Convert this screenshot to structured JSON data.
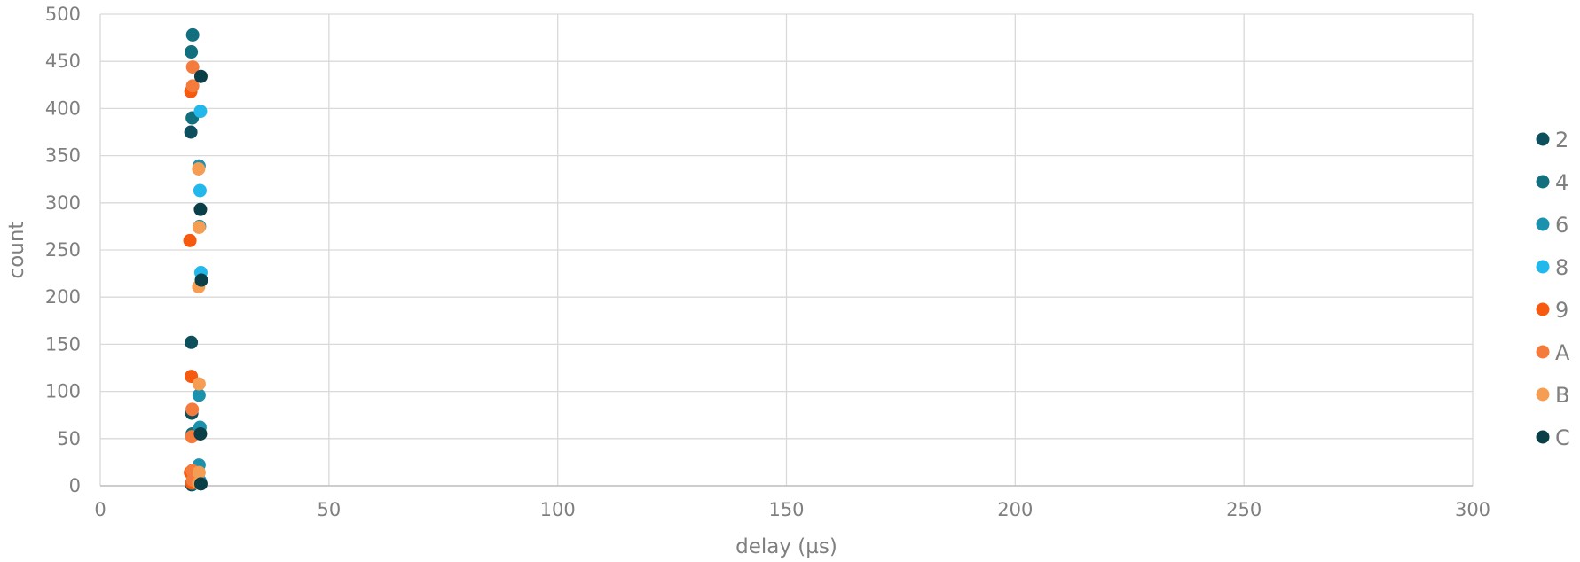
{
  "chart_data": {
    "type": "scatter",
    "xlabel": "delay (µs)",
    "ylabel": "count",
    "xlim": [
      0,
      300
    ],
    "ylim": [
      0,
      500
    ],
    "x_ticks": [
      0,
      50,
      100,
      150,
      200,
      250,
      300
    ],
    "y_ticks": [
      0,
      50,
      100,
      150,
      200,
      250,
      300,
      350,
      400,
      450,
      500
    ],
    "grid": true,
    "legend_position": "right",
    "series": [
      {
        "name": "2",
        "color": "#0d4f5c",
        "points": [
          [
            19.8,
            375
          ],
          [
            19.9,
            152
          ],
          [
            20.0,
            77
          ],
          [
            20.2,
            5
          ],
          [
            20.0,
            1
          ]
        ]
      },
      {
        "name": "4",
        "color": "#12707e",
        "points": [
          [
            20.2,
            478
          ],
          [
            19.9,
            460
          ],
          [
            20.1,
            390
          ],
          [
            20.1,
            55
          ],
          [
            20.3,
            10
          ],
          [
            20.3,
            2
          ]
        ]
      },
      {
        "name": "6",
        "color": "#1b92ad",
        "points": [
          [
            21.6,
            339
          ],
          [
            21.7,
            275
          ],
          [
            21.6,
            96
          ],
          [
            21.8,
            62
          ],
          [
            21.6,
            22
          ],
          [
            21.8,
            5
          ]
        ]
      },
      {
        "name": "8",
        "color": "#22b8eb",
        "points": [
          [
            21.9,
            397
          ],
          [
            21.8,
            313
          ],
          [
            22.0,
            226
          ],
          [
            21.8,
            3
          ]
        ]
      },
      {
        "name": "9",
        "color": "#f55a0e",
        "points": [
          [
            19.8,
            418
          ],
          [
            19.6,
            260
          ],
          [
            19.9,
            116
          ],
          [
            19.7,
            14
          ],
          [
            20.0,
            3
          ]
        ]
      },
      {
        "name": "A",
        "color": "#f57b3c",
        "points": [
          [
            20.2,
            444
          ],
          [
            20.2,
            424
          ],
          [
            20.1,
            81
          ],
          [
            20.0,
            52
          ],
          [
            20.1,
            16
          ],
          [
            20.2,
            6
          ]
        ]
      },
      {
        "name": "B",
        "color": "#f59d52",
        "points": [
          [
            21.5,
            336
          ],
          [
            21.6,
            274
          ],
          [
            21.5,
            211
          ],
          [
            21.6,
            108
          ],
          [
            21.6,
            14
          ],
          [
            21.5,
            3
          ]
        ]
      },
      {
        "name": "C",
        "color": "#0b3f47",
        "points": [
          [
            22.0,
            434
          ],
          [
            21.9,
            293
          ],
          [
            22.1,
            218
          ],
          [
            21.9,
            55
          ],
          [
            22.0,
            2
          ]
        ]
      }
    ]
  }
}
